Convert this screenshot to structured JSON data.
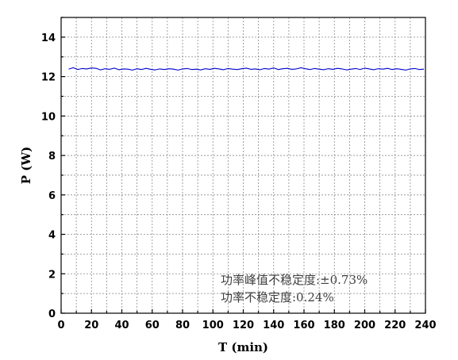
{
  "chart_data": {
    "type": "line",
    "title": "",
    "xlabel": "T (min)",
    "ylabel": "P (W)",
    "xlim": [
      0,
      240
    ],
    "ylim": [
      0,
      15
    ],
    "xticks": [
      0,
      20,
      40,
      60,
      80,
      100,
      120,
      140,
      160,
      180,
      200,
      220,
      240
    ],
    "yticks": [
      0,
      2,
      4,
      6,
      8,
      10,
      12,
      14
    ],
    "x_minor_step": 10,
    "y_minor_step": 1,
    "grid": true,
    "legend": "none",
    "series": [
      {
        "color": "#0000cc",
        "x": [
          5,
          8,
          11,
          14,
          17,
          20,
          23,
          26,
          29,
          32,
          35,
          38,
          41,
          44,
          47,
          50,
          53,
          56,
          59,
          62,
          65,
          68,
          71,
          74,
          77,
          80,
          83,
          86,
          89,
          92,
          95,
          98,
          101,
          104,
          107,
          110,
          113,
          116,
          119,
          122,
          125,
          128,
          131,
          134,
          137,
          140,
          143,
          146,
          149,
          152,
          155,
          158,
          161,
          164,
          167,
          170,
          173,
          176,
          179,
          182,
          185,
          188,
          191,
          194,
          197,
          200,
          203,
          206,
          209,
          212,
          215,
          218,
          221,
          224,
          227,
          230,
          233,
          236,
          239
        ],
        "y": [
          12.38,
          12.45,
          12.36,
          12.41,
          12.39,
          12.44,
          12.42,
          12.34,
          12.4,
          12.37,
          12.43,
          12.35,
          12.39,
          12.38,
          12.33,
          12.4,
          12.36,
          12.42,
          12.37,
          12.34,
          12.39,
          12.36,
          12.4,
          12.38,
          12.33,
          12.39,
          12.41,
          12.36,
          12.38,
          12.34,
          12.4,
          12.37,
          12.42,
          12.39,
          12.35,
          12.41,
          12.38,
          12.36,
          12.4,
          12.43,
          12.37,
          12.39,
          12.35,
          12.41,
          12.38,
          12.44,
          12.36,
          12.4,
          12.42,
          12.37,
          12.39,
          12.45,
          12.4,
          12.36,
          12.41,
          12.38,
          12.35,
          12.4,
          12.37,
          12.42,
          12.39,
          12.34,
          12.38,
          12.41,
          12.36,
          12.43,
          12.39,
          12.35,
          12.4,
          12.38,
          12.42,
          12.36,
          12.4,
          12.37,
          12.33,
          12.39,
          12.41,
          12.36,
          12.38
        ]
      }
    ],
    "annotations": [
      "功率峰值不稳定度:±0.73%",
      "功率不稳定度:0.24%"
    ]
  }
}
